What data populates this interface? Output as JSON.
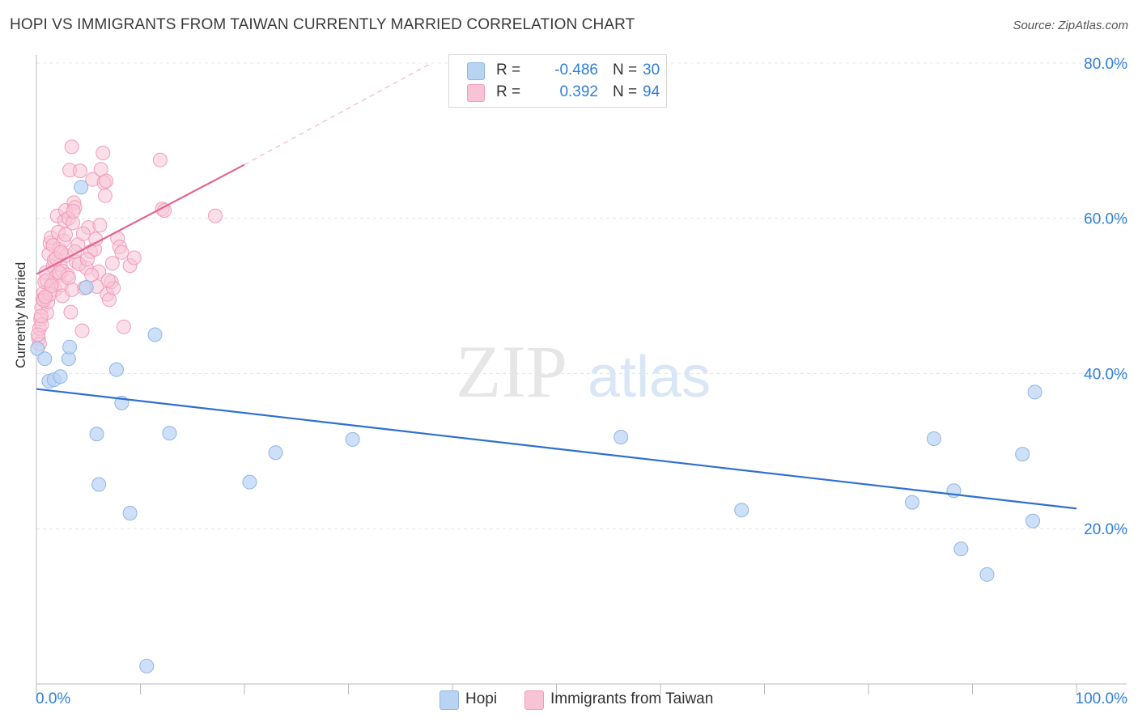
{
  "title": "HOPI VS IMMIGRANTS FROM TAIWAN CURRENTLY MARRIED CORRELATION CHART",
  "source": "Source: ZipAtlas.com",
  "watermark": {
    "zip": "ZIP",
    "atlas": "atlas"
  },
  "legend": {
    "rows": [
      {
        "r_label": "R =",
        "r_value": "-0.486",
        "n_label": "N =",
        "n_value": "30"
      },
      {
        "r_label": "R =",
        "r_value": "0.392",
        "n_label": "N =",
        "n_value": "94"
      }
    ]
  },
  "bottom_legend": {
    "hopi": "Hopi",
    "taiwan": "Immigrants from Taiwan"
  },
  "colors": {
    "hopi_fill": "#b9d3f3",
    "hopi_stroke": "#8db5e8",
    "hopi_line": "#2f6fd0",
    "taiwan_fill": "#f8c4d5",
    "taiwan_stroke": "#f29bb8",
    "taiwan_line": "#e3668f",
    "tick_label": "#2f7fd9"
  },
  "chart_data": {
    "type": "scatter",
    "title": "HOPI VS IMMIGRANTS FROM TAIWAN CURRENTLY MARRIED CORRELATION CHART",
    "xlabel": "",
    "ylabel": "Currently Married",
    "xlim": [
      0,
      100
    ],
    "ylim": [
      0,
      80
    ],
    "x_tick_labels": [
      "0.0%",
      "100.0%"
    ],
    "y_ticks": [
      20,
      40,
      60,
      80
    ],
    "y_tick_labels": [
      "20.0%",
      "40.0%",
      "60.0%",
      "80.0%"
    ],
    "grid": true,
    "series": [
      {
        "name": "Hopi",
        "R": -0.486,
        "N": 30,
        "trend": {
          "x": [
            0,
            100
          ],
          "y": [
            38.0,
            22.6
          ]
        },
        "points": [
          [
            0.1,
            43.2
          ],
          [
            0.8,
            41.9
          ],
          [
            1.2,
            39.0
          ],
          [
            1.7,
            39.2
          ],
          [
            2.3,
            39.6
          ],
          [
            3.1,
            41.9
          ],
          [
            3.2,
            43.4
          ],
          [
            4.3,
            64.0
          ],
          [
            4.8,
            51.1
          ],
          [
            5.8,
            32.2
          ],
          [
            6.0,
            25.7
          ],
          [
            7.7,
            40.5
          ],
          [
            8.2,
            36.2
          ],
          [
            9.0,
            22.0
          ],
          [
            10.6,
            2.3
          ],
          [
            11.4,
            45.0
          ],
          [
            12.8,
            32.3
          ],
          [
            20.5,
            26.0
          ],
          [
            23.0,
            29.8
          ],
          [
            30.4,
            31.5
          ],
          [
            56.2,
            31.8
          ],
          [
            67.8,
            22.4
          ],
          [
            84.2,
            23.4
          ],
          [
            86.3,
            31.6
          ],
          [
            88.2,
            24.9
          ],
          [
            88.9,
            17.4
          ],
          [
            91.4,
            14.1
          ],
          [
            94.8,
            29.6
          ],
          [
            95.8,
            21.0
          ],
          [
            96.0,
            37.6
          ]
        ]
      },
      {
        "name": "Immigrants from Taiwan",
        "R": 0.392,
        "N": 94,
        "trend": {
          "x": [
            0,
            20
          ],
          "y": [
            52.8,
            66.9
          ]
        },
        "trend_dashed": {
          "x": [
            20,
            38
          ],
          "y": [
            66.9,
            80.0
          ]
        },
        "points": [
          [
            0.2,
            44.5
          ],
          [
            0.3,
            45.8
          ],
          [
            0.4,
            47.0
          ],
          [
            0.5,
            48.5
          ],
          [
            0.6,
            49.6
          ],
          [
            0.7,
            50.4
          ],
          [
            0.8,
            51.8
          ],
          [
            0.9,
            53.0
          ],
          [
            1.0,
            47.8
          ],
          [
            1.1,
            49.2
          ],
          [
            1.2,
            55.4
          ],
          [
            1.3,
            56.8
          ],
          [
            1.4,
            57.5
          ],
          [
            1.5,
            51.6
          ],
          [
            1.6,
            53.8
          ],
          [
            1.7,
            54.6
          ],
          [
            1.8,
            50.8
          ],
          [
            1.9,
            52.5
          ],
          [
            2.0,
            60.3
          ],
          [
            2.1,
            58.2
          ],
          [
            2.2,
            56.0
          ],
          [
            2.3,
            54.0
          ],
          [
            2.4,
            51.4
          ],
          [
            2.5,
            53.2
          ],
          [
            2.6,
            57.1
          ],
          [
            2.7,
            59.7
          ],
          [
            2.8,
            61.0
          ],
          [
            2.9,
            55.2
          ],
          [
            3.0,
            52.7
          ],
          [
            3.1,
            60.0
          ],
          [
            3.2,
            66.2
          ],
          [
            3.3,
            47.9
          ],
          [
            3.4,
            69.2
          ],
          [
            3.5,
            59.4
          ],
          [
            3.6,
            62.0
          ],
          [
            3.7,
            61.4
          ],
          [
            3.8,
            54.4
          ],
          [
            4.0,
            56.6
          ],
          [
            4.2,
            66.1
          ],
          [
            4.4,
            45.5
          ],
          [
            4.6,
            51.0
          ],
          [
            4.8,
            53.6
          ],
          [
            5.0,
            58.8
          ],
          [
            5.2,
            55.7
          ],
          [
            5.4,
            65.0
          ],
          [
            5.6,
            56.0
          ],
          [
            5.8,
            51.2
          ],
          [
            6.0,
            53.1
          ],
          [
            6.2,
            66.3
          ],
          [
            6.4,
            68.4
          ],
          [
            6.5,
            64.6
          ],
          [
            6.6,
            62.9
          ],
          [
            6.7,
            64.8
          ],
          [
            6.8,
            50.2
          ],
          [
            7.0,
            49.5
          ],
          [
            7.2,
            51.8
          ],
          [
            7.4,
            51.0
          ],
          [
            7.8,
            57.4
          ],
          [
            8.0,
            56.3
          ],
          [
            8.2,
            55.6
          ],
          [
            8.4,
            46.0
          ],
          [
            9.0,
            53.9
          ],
          [
            9.4,
            54.9
          ],
          [
            11.9,
            67.5
          ],
          [
            12.1,
            61.2
          ],
          [
            12.3,
            61.0
          ],
          [
            17.2,
            60.3
          ],
          [
            0.3,
            43.8
          ],
          [
            0.5,
            46.3
          ],
          [
            0.7,
            49.4
          ],
          [
            1.0,
            52.0
          ],
          [
            1.3,
            50.2
          ],
          [
            1.6,
            56.5
          ],
          [
            1.9,
            54.8
          ],
          [
            2.2,
            53.0
          ],
          [
            2.5,
            50.0
          ],
          [
            2.8,
            57.9
          ],
          [
            3.1,
            52.3
          ],
          [
            3.4,
            50.8
          ],
          [
            3.7,
            55.7
          ],
          [
            4.1,
            54.1
          ],
          [
            4.5,
            58.0
          ],
          [
            4.9,
            54.7
          ],
          [
            5.3,
            52.7
          ],
          [
            5.7,
            57.3
          ],
          [
            6.1,
            59.1
          ],
          [
            6.9,
            52.0
          ],
          [
            7.3,
            54.2
          ],
          [
            0.15,
            45.0
          ],
          [
            0.45,
            47.4
          ],
          [
            0.85,
            49.9
          ],
          [
            1.45,
            51.3
          ],
          [
            2.35,
            55.6
          ],
          [
            3.55,
            60.9
          ]
        ]
      }
    ]
  }
}
